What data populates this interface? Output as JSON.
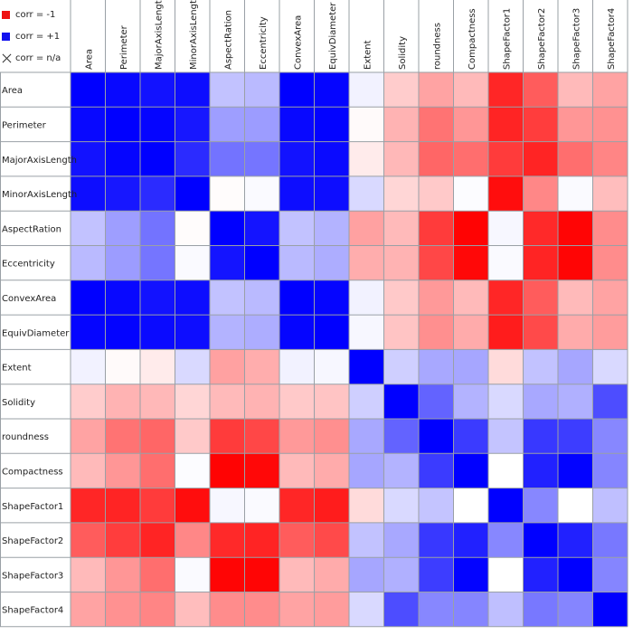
{
  "legend": [
    {
      "label": "corr = -1",
      "color": "#ee1111"
    },
    {
      "label": "corr = +1",
      "color": "#1111ee"
    },
    {
      "label": "corr = n/a",
      "icon": "cross-icon"
    }
  ],
  "chart_data": {
    "type": "heatmap",
    "title": "",
    "color_scale": {
      "negative": "#ff0000",
      "zero": "#ffffff",
      "positive": "#0000ff",
      "range": [
        -1,
        1
      ]
    },
    "grid": true,
    "legend_position": "top-left",
    "variables": [
      "Area",
      "Perimeter",
      "MajorAxisLength",
      "MinorAxisLength",
      "AspectRation",
      "Eccentricity",
      "ConvexArea",
      "EquivDiameter",
      "Extent",
      "Solidity",
      "roundness",
      "Compactness",
      "ShapeFactor1",
      "ShapeFactor2",
      "ShapeFactor3",
      "ShapeFactor4"
    ],
    "matrix": [
      [
        1.0,
        0.97,
        0.93,
        0.95,
        0.24,
        0.27,
        1.0,
        0.98,
        0.05,
        -0.2,
        -0.36,
        -0.27,
        -0.85,
        -0.64,
        -0.27,
        -0.36
      ],
      [
        0.97,
        1.0,
        0.98,
        0.91,
        0.38,
        0.39,
        0.97,
        0.99,
        -0.02,
        -0.3,
        -0.55,
        -0.41,
        -0.86,
        -0.76,
        -0.41,
        -0.43
      ],
      [
        0.93,
        0.98,
        1.0,
        0.83,
        0.55,
        0.54,
        0.93,
        0.96,
        -0.08,
        -0.28,
        -0.6,
        -0.57,
        -0.77,
        -0.86,
        -0.57,
        -0.48
      ],
      [
        0.95,
        0.91,
        0.83,
        1.0,
        -0.01,
        0.02,
        0.95,
        0.95,
        0.15,
        -0.16,
        -0.21,
        0.01,
        -0.95,
        -0.47,
        0.02,
        -0.26
      ],
      [
        0.24,
        0.38,
        0.55,
        -0.01,
        1.0,
        0.92,
        0.24,
        0.3,
        -0.37,
        -0.27,
        -0.77,
        -0.99,
        0.03,
        -0.84,
        -0.98,
        -0.45
      ],
      [
        0.27,
        0.39,
        0.54,
        0.02,
        0.92,
        1.0,
        0.27,
        0.32,
        -0.32,
        -0.3,
        -0.72,
        -0.97,
        0.02,
        -0.86,
        -0.98,
        -0.45
      ],
      [
        1.0,
        0.97,
        0.93,
        0.95,
        0.24,
        0.27,
        1.0,
        0.98,
        0.05,
        -0.21,
        -0.4,
        -0.27,
        -0.85,
        -0.64,
        -0.27,
        -0.36
      ],
      [
        0.98,
        0.99,
        0.96,
        0.95,
        0.3,
        0.32,
        0.98,
        1.0,
        0.03,
        -0.23,
        -0.44,
        -0.33,
        -0.89,
        -0.71,
        -0.33,
        -0.39
      ],
      [
        0.05,
        -0.02,
        -0.08,
        0.15,
        -0.37,
        -0.32,
        0.05,
        0.03,
        1.0,
        0.19,
        0.34,
        0.35,
        -0.14,
        0.24,
        0.35,
        0.15
      ],
      [
        -0.2,
        -0.3,
        -0.28,
        -0.16,
        -0.27,
        -0.3,
        -0.21,
        -0.23,
        0.19,
        1.0,
        0.61,
        0.3,
        0.15,
        0.34,
        0.31,
        0.7
      ],
      [
        -0.36,
        -0.55,
        -0.6,
        -0.21,
        -0.77,
        -0.72,
        -0.4,
        -0.44,
        0.34,
        0.61,
        1.0,
        0.77,
        0.23,
        0.78,
        0.76,
        0.47
      ],
      [
        -0.27,
        -0.41,
        -0.57,
        0.01,
        -0.99,
        -0.97,
        -0.27,
        -0.33,
        0.35,
        0.3,
        0.77,
        1.0,
        0.0,
        0.87,
        0.99,
        0.48
      ],
      [
        -0.85,
        -0.86,
        -0.77,
        -0.95,
        0.03,
        0.02,
        -0.85,
        -0.89,
        -0.14,
        0.15,
        0.23,
        0.0,
        1.0,
        0.47,
        0.0,
        0.25
      ],
      [
        -0.64,
        -0.76,
        -0.86,
        -0.47,
        -0.84,
        -0.86,
        -0.64,
        -0.71,
        0.24,
        0.34,
        0.78,
        0.87,
        0.47,
        1.0,
        0.87,
        0.53
      ],
      [
        -0.27,
        -0.41,
        -0.57,
        0.02,
        -0.98,
        -0.98,
        -0.27,
        -0.33,
        0.35,
        0.31,
        0.76,
        0.99,
        0.0,
        0.87,
        1.0,
        0.48
      ],
      [
        -0.36,
        -0.43,
        -0.48,
        -0.26,
        -0.45,
        -0.45,
        -0.36,
        -0.39,
        0.15,
        0.7,
        0.47,
        0.48,
        0.25,
        0.53,
        0.48,
        1.0
      ]
    ]
  }
}
